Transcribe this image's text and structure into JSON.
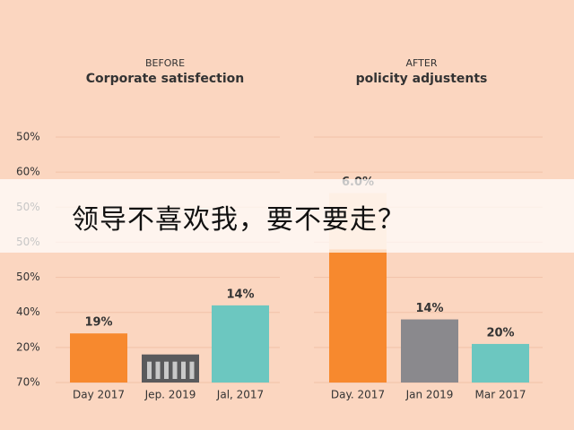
{
  "chart_data": [
    {
      "type": "bar",
      "subtitle": "BEFORE",
      "title": "Corporate satisfection",
      "y_labels": [
        "50%",
        "60%",
        "50%",
        "50%",
        "50%",
        "40%",
        "20%",
        "70%"
      ],
      "categories": [
        "Day 2017",
        "Jep. 2019",
        "Jal, 2017"
      ],
      "values": [
        1.4,
        0.8,
        2.2
      ],
      "colors": [
        "#f7892e",
        "#5a5a5c",
        "#6cc7c0"
      ],
      "bar_labels": [
        "19%",
        null,
        "14%"
      ],
      "ylim": [
        0,
        7
      ]
    },
    {
      "type": "bar",
      "subtitle": "AFTER",
      "title": "policity adjustents",
      "categories": [
        "Day. 2017",
        "Jan 2019",
        "Mar 2017"
      ],
      "values": [
        3.8,
        1.8,
        1.1
      ],
      "extra": [
        1.6,
        null,
        null
      ],
      "extra_color": "#fcc8a0",
      "colors": [
        "#f7892e",
        "#8a898d",
        "#6cc7c0"
      ],
      "bar_labels": [
        "6.0%",
        "14%",
        "20%"
      ],
      "ylim": [
        0,
        7
      ]
    }
  ],
  "overlay": {
    "text": "领导不喜欢我，要不要走？"
  }
}
